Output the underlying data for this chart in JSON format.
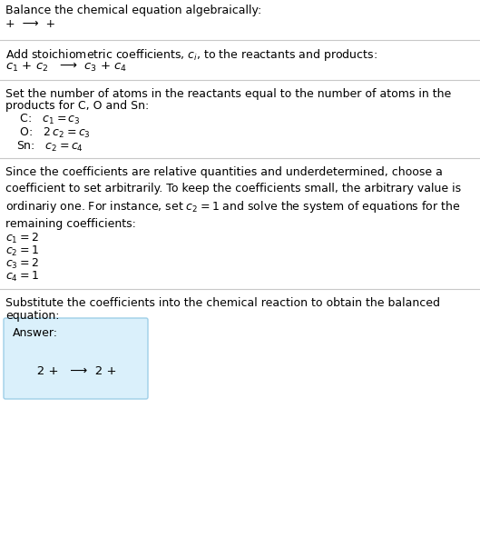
{
  "title": "Balance the chemical equation algebraically:",
  "line1": "+  ⟶  +",
  "section2_intro": "Add stoichiometric coefficients, $c_i$, to the reactants and products:",
  "section2_eq": "$c_1$ + $c_2$   ⟶  $c_3$ + $c_4$",
  "section3_intro1": "Set the number of atoms in the reactants equal to the number of atoms in the",
  "section3_intro2": "products for C, O and Sn:",
  "section3_C": " C:   $c_1 = c_3$",
  "section3_O": " O:   $2\\,c_2 = c_3$",
  "section3_Sn": "Sn:   $c_2 = c_4$",
  "section4_para": "Since the coefficients are relative quantities and underdetermined, choose a\ncoefficient to set arbitrarily. To keep the coefficients small, the arbitrary value is\nordinariy one. For instance, set $c_2 = 1$ and solve the system of equations for the\nremaining coefficients:",
  "section4_c1": "$c_1 = 2$",
  "section4_c2": "$c_2 = 1$",
  "section4_c3": "$c_3 = 2$",
  "section4_c4": "$c_4 = 1$",
  "section5_intro1": "Substitute the coefficients into the chemical reaction to obtain the balanced",
  "section5_intro2": "equation:",
  "answer_label": "Answer:",
  "answer_eq": "   2 +   ⟶  2 +",
  "bg_color": "#ffffff",
  "answer_box_facecolor": "#daf0fb",
  "answer_box_edgecolor": "#9ecfe8",
  "divider_color": "#c8c8c8"
}
